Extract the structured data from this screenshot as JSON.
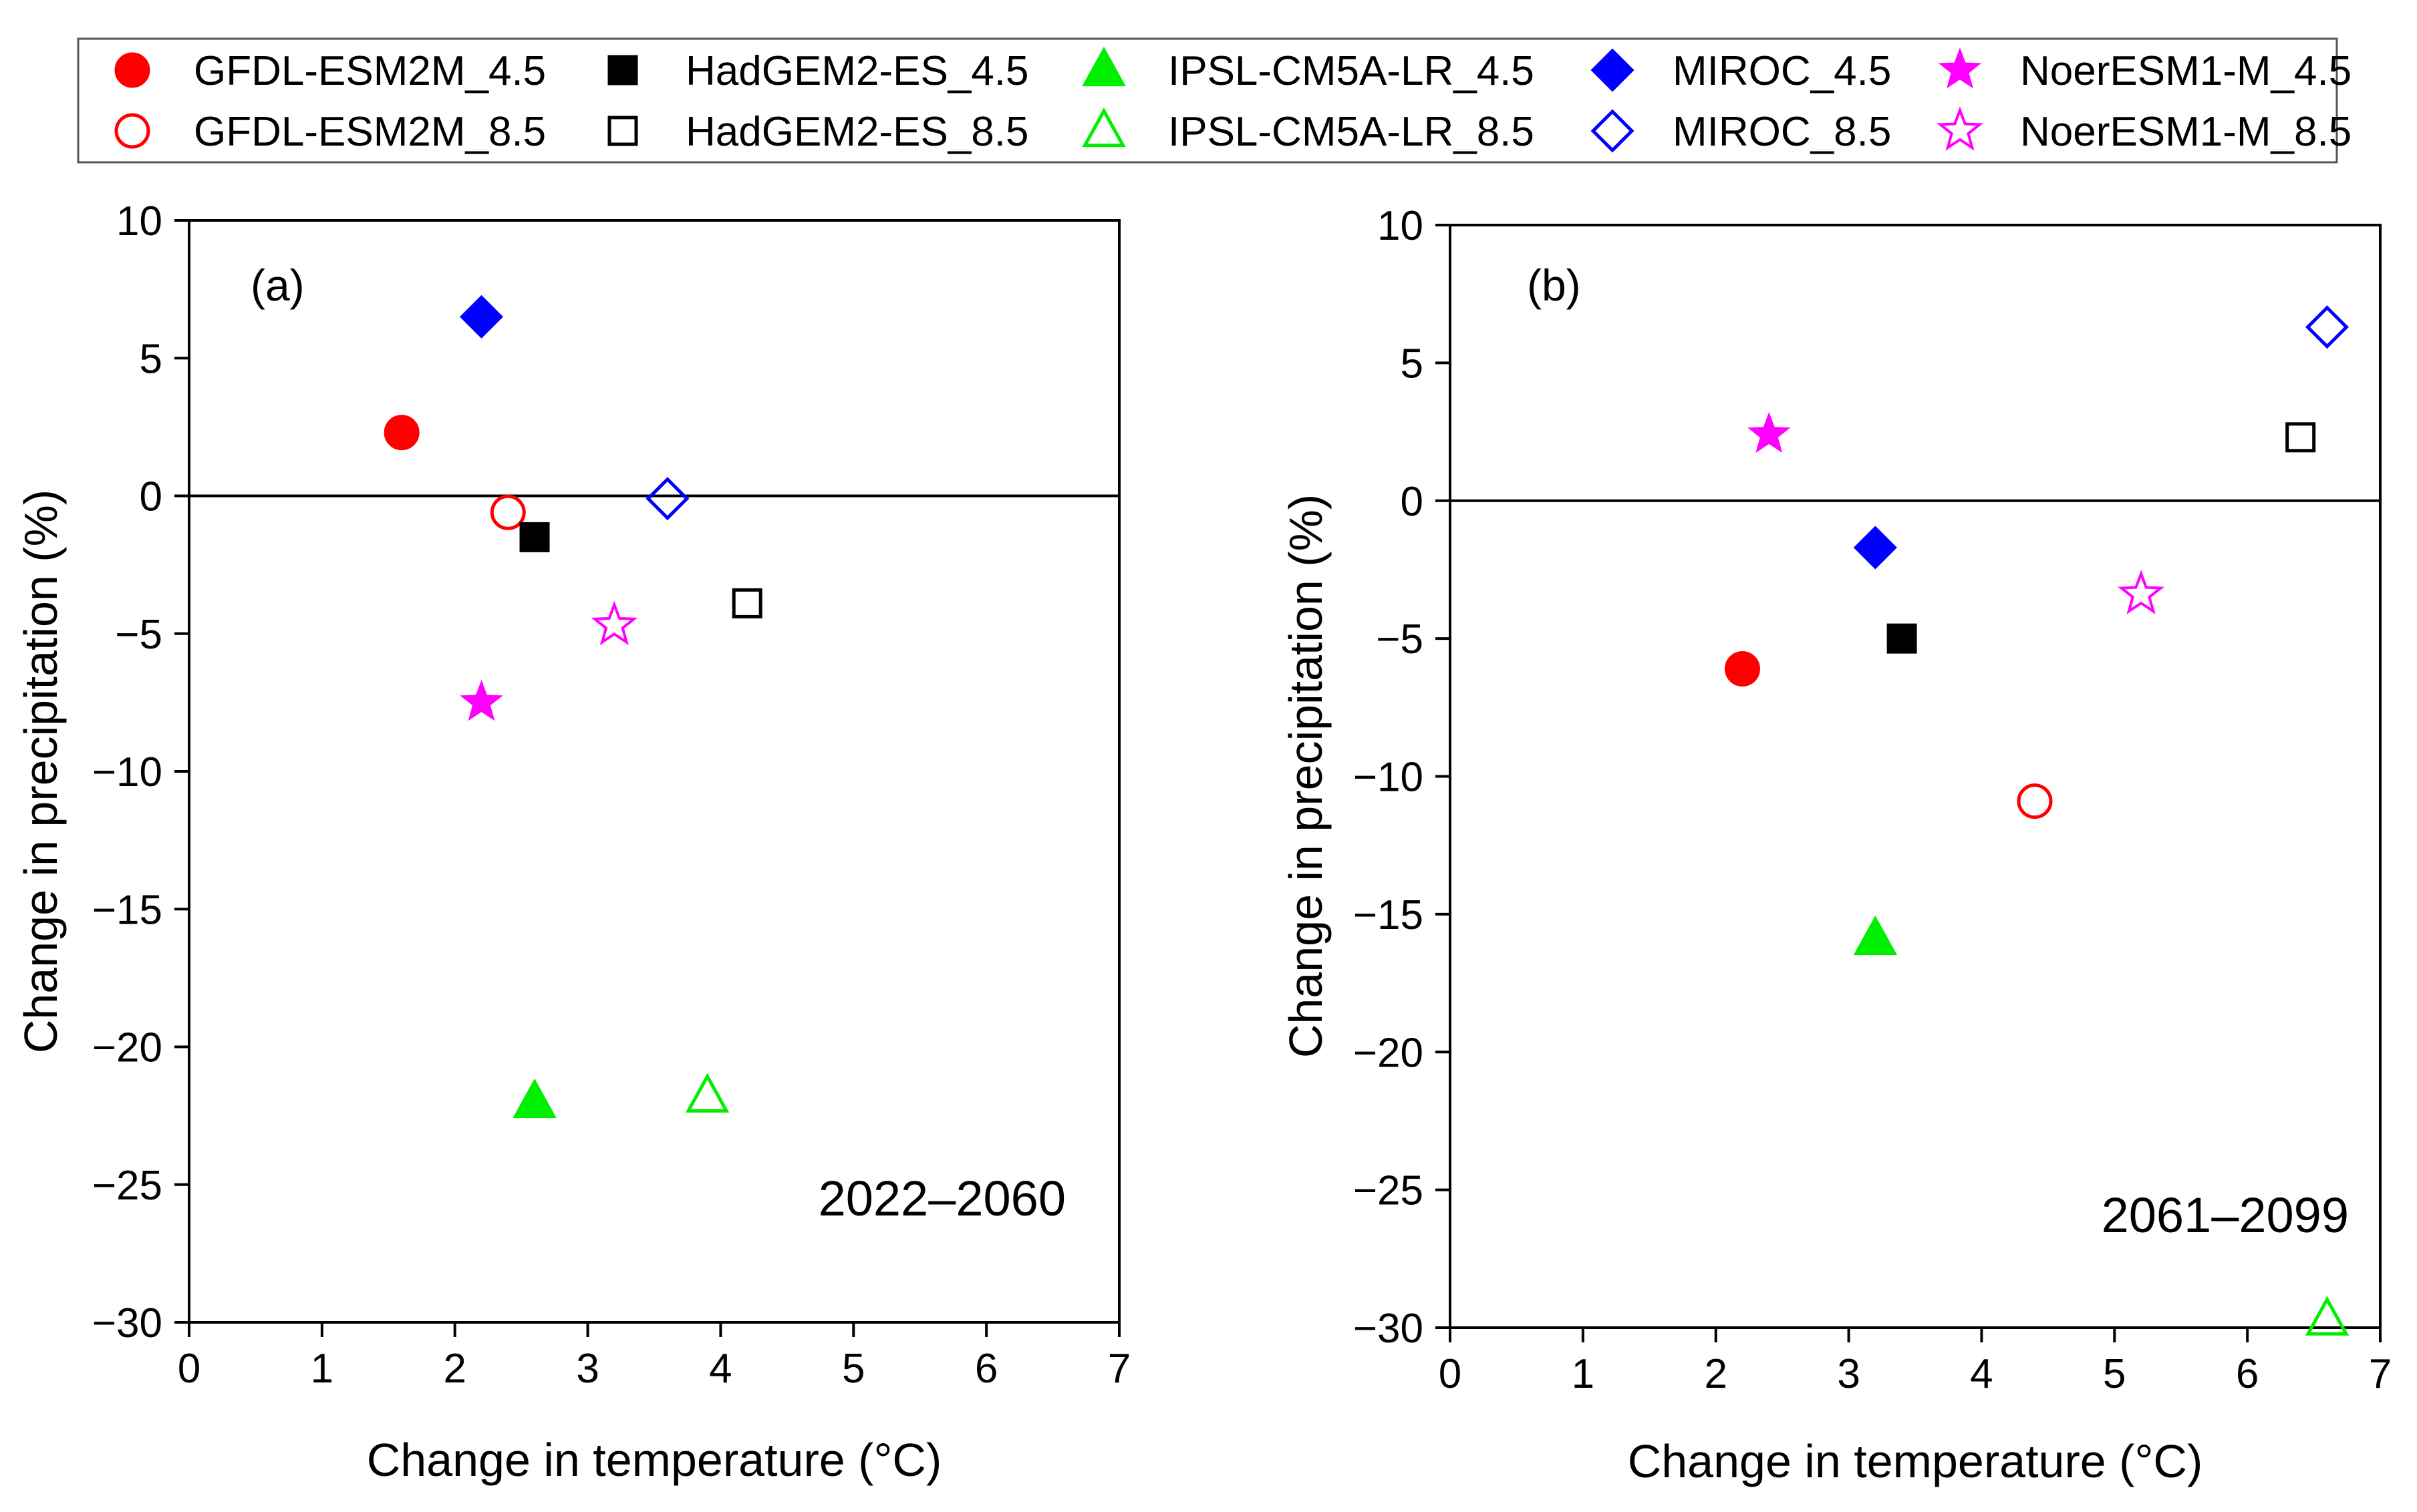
{
  "chart_data": [
    {
      "type": "scatter",
      "panel_label": "(a)",
      "period": "2022–2060",
      "xlabel": "Change in temperature (°C)",
      "ylabel": "Change in precipitation (%)",
      "xlim": [
        0,
        7
      ],
      "ylim": [
        -30,
        10
      ],
      "xticks": [
        "0",
        "1",
        "2",
        "3",
        "4",
        "5",
        "6",
        "7"
      ],
      "yticks": [
        "10",
        "5",
        "0",
        "−5",
        "−10",
        "−15",
        "−20",
        "−25",
        "−30"
      ],
      "zero_line": 0,
      "points": [
        {
          "series": "GFDL-ESM2M_4.5",
          "x": 1.6,
          "y": 2.3
        },
        {
          "series": "GFDL-ESM2M_8.5",
          "x": 2.4,
          "y": -0.6
        },
        {
          "series": "HadGEM2-ES_4.5",
          "x": 2.6,
          "y": -1.5
        },
        {
          "series": "HadGEM2-ES_8.5",
          "x": 4.2,
          "y": -3.9
        },
        {
          "series": "IPSL-CM5A-LR_4.5",
          "x": 2.6,
          "y": -22.0
        },
        {
          "series": "IPSL-CM5A-LR_8.5",
          "x": 3.9,
          "y": -21.8
        },
        {
          "series": "MIROC_4.5",
          "x": 2.2,
          "y": 6.5
        },
        {
          "series": "MIROC_8.5",
          "x": 3.6,
          "y": -0.1
        },
        {
          "series": "NoerESM1-M_4.5",
          "x": 2.2,
          "y": -7.5
        },
        {
          "series": "NoerESM1-M_8.5",
          "x": 3.2,
          "y": -4.7
        }
      ]
    },
    {
      "type": "scatter",
      "panel_label": "(b)",
      "period": "2061–2099",
      "xlabel": "Change in temperature (°C)",
      "ylabel": "Change in precipitation (%)",
      "xlim": [
        0,
        7
      ],
      "ylim": [
        -30,
        10
      ],
      "xticks": [
        "0",
        "1",
        "2",
        "3",
        "4",
        "5",
        "6",
        "7"
      ],
      "yticks": [
        "10",
        "5",
        "0",
        "−5",
        "−10",
        "−15",
        "−20",
        "−25",
        "−30"
      ],
      "zero_line": 0,
      "points": [
        {
          "series": "GFDL-ESM2M_4.5",
          "x": 2.2,
          "y": -6.1
        },
        {
          "series": "GFDL-ESM2M_8.5",
          "x": 4.4,
          "y": -10.9
        },
        {
          "series": "HadGEM2-ES_4.5",
          "x": 3.4,
          "y": -5.0
        },
        {
          "series": "HadGEM2-ES_8.5",
          "x": 6.4,
          "y": 2.3
        },
        {
          "series": "IPSL-CM5A-LR_4.5",
          "x": 3.2,
          "y": -15.9
        },
        {
          "series": "IPSL-CM5A-LR_8.5",
          "x": 6.6,
          "y": -29.7
        },
        {
          "series": "MIROC_4.5",
          "x": 3.2,
          "y": -1.7
        },
        {
          "series": "MIROC_8.5",
          "x": 6.6,
          "y": 6.3
        },
        {
          "series": "NoerESM1-M_4.5",
          "x": 2.4,
          "y": 2.4
        },
        {
          "series": "NoerESM1-M_8.5",
          "x": 5.2,
          "y": -3.4
        }
      ]
    }
  ],
  "legend": [
    {
      "label": "GFDL-ESM2M_4.5",
      "marker": "circle",
      "filled": true,
      "color": "#ff0000"
    },
    {
      "label": "HadGEM2-ES_4.5",
      "marker": "square",
      "filled": true,
      "color": "#000000"
    },
    {
      "label": "IPSL-CM5A-LR_4.5",
      "marker": "triangle",
      "filled": true,
      "color": "#00ee00"
    },
    {
      "label": "MIROC_4.5",
      "marker": "diamond",
      "filled": true,
      "color": "#0000ff"
    },
    {
      "label": "NoerESM1-M_4.5",
      "marker": "star",
      "filled": true,
      "color": "#ff00ff"
    },
    {
      "label": "GFDL-ESM2M_8.5",
      "marker": "circle",
      "filled": false,
      "color": "#ff0000"
    },
    {
      "label": "HadGEM2-ES_8.5",
      "marker": "square",
      "filled": false,
      "color": "#000000"
    },
    {
      "label": "IPSL-CM5A-LR_8.5",
      "marker": "triangle",
      "filled": false,
      "color": "#00ee00"
    },
    {
      "label": "MIROC_8.5",
      "marker": "diamond",
      "filled": false,
      "color": "#0000ff"
    },
    {
      "label": "NoerESM1-M_8.5",
      "marker": "star",
      "filled": false,
      "color": "#ff00ff"
    }
  ]
}
